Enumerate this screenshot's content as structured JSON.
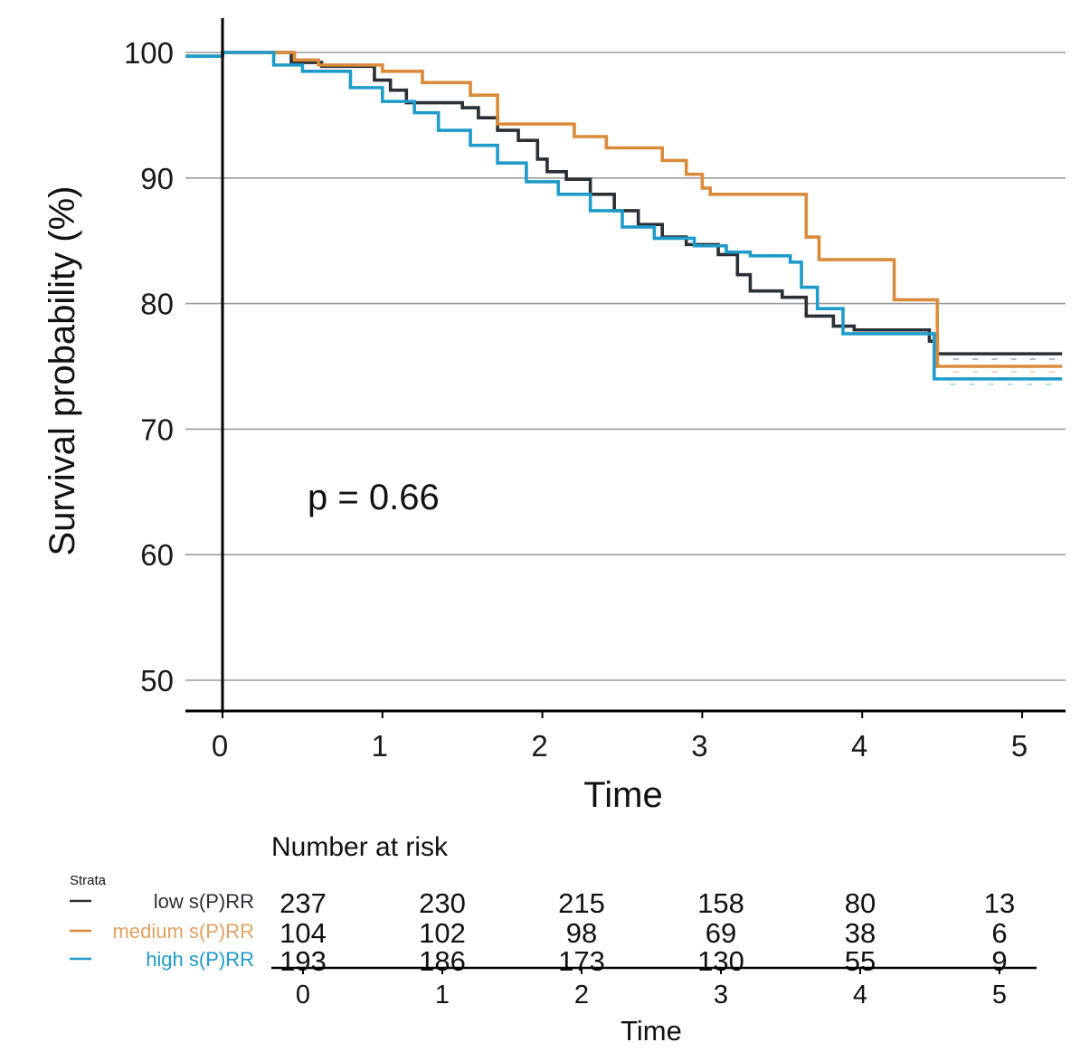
{
  "chart_data": {
    "type": "line",
    "subtype": "kaplan-meier step",
    "title": "",
    "xlabel": "Time",
    "ylabel": "Survival probability (%)",
    "xlim": [
      0,
      5.25
    ],
    "ylim": [
      47.5,
      103
    ],
    "x_ticks": [
      "0",
      "1",
      "2",
      "3",
      "4",
      "5"
    ],
    "y_ticks": [
      "50",
      "60",
      "70",
      "80",
      "90",
      "100"
    ],
    "grid": "horizontal",
    "annotation": "p = 0.66",
    "legend_title": "Strata",
    "series": [
      {
        "name": "low s(P)RR",
        "color": "#2b2f36",
        "points": [
          [
            0,
            100
          ],
          [
            0.43,
            99.2
          ],
          [
            0.62,
            98.9
          ],
          [
            0.95,
            97.8
          ],
          [
            1.05,
            97.0
          ],
          [
            1.15,
            96.0
          ],
          [
            1.5,
            95.6
          ],
          [
            1.6,
            94.8
          ],
          [
            1.72,
            93.8
          ],
          [
            1.85,
            93.0
          ],
          [
            1.97,
            91.5
          ],
          [
            2.03,
            90.5
          ],
          [
            2.15,
            89.9
          ],
          [
            2.3,
            88.7
          ],
          [
            2.45,
            87.4
          ],
          [
            2.6,
            86.3
          ],
          [
            2.75,
            85.3
          ],
          [
            2.9,
            84.7
          ],
          [
            3.1,
            83.9
          ],
          [
            3.22,
            82.3
          ],
          [
            3.3,
            81.0
          ],
          [
            3.5,
            80.5
          ],
          [
            3.65,
            79.0
          ],
          [
            3.82,
            78.2
          ],
          [
            3.95,
            77.9
          ],
          [
            4.42,
            77.0
          ],
          [
            4.47,
            76.0
          ],
          [
            5.25,
            76.0
          ]
        ]
      },
      {
        "name": "medium s(P)RR",
        "color": "#d98a3a",
        "points": [
          [
            0,
            100
          ],
          [
            0.45,
            99.4
          ],
          [
            0.6,
            99.0
          ],
          [
            1.0,
            98.5
          ],
          [
            1.25,
            97.6
          ],
          [
            1.55,
            96.6
          ],
          [
            1.72,
            94.3
          ],
          [
            2.2,
            93.3
          ],
          [
            2.4,
            92.4
          ],
          [
            2.75,
            91.4
          ],
          [
            2.9,
            90.3
          ],
          [
            3.0,
            89.2
          ],
          [
            3.05,
            88.7
          ],
          [
            3.65,
            85.3
          ],
          [
            3.73,
            83.5
          ],
          [
            4.2,
            80.3
          ],
          [
            4.47,
            75.0
          ],
          [
            5.25,
            75.0
          ]
        ]
      },
      {
        "name": "high s(P)RR",
        "color": "#1f9bc9",
        "points": [
          [
            0,
            100
          ],
          [
            0.32,
            99.0
          ],
          [
            0.5,
            98.5
          ],
          [
            0.8,
            97.2
          ],
          [
            1.0,
            96.1
          ],
          [
            1.2,
            95.2
          ],
          [
            1.35,
            93.8
          ],
          [
            1.55,
            92.6
          ],
          [
            1.72,
            91.2
          ],
          [
            1.9,
            89.7
          ],
          [
            2.1,
            88.7
          ],
          [
            2.3,
            87.4
          ],
          [
            2.5,
            86.1
          ],
          [
            2.7,
            85.2
          ],
          [
            2.95,
            84.6
          ],
          [
            3.15,
            84.1
          ],
          [
            3.3,
            83.8
          ],
          [
            3.55,
            83.3
          ],
          [
            3.62,
            81.3
          ],
          [
            3.72,
            79.6
          ],
          [
            3.88,
            77.6
          ],
          [
            4.45,
            74.0
          ],
          [
            5.25,
            74.0
          ]
        ]
      }
    ],
    "risk_table": {
      "title": "Number at risk",
      "xlabel": "Time",
      "times": [
        "0",
        "1",
        "2",
        "3",
        "4",
        "5"
      ],
      "rows": [
        {
          "name": "low s(P)RR",
          "values": [
            "237",
            "230",
            "215",
            "158",
            "80",
            "13"
          ]
        },
        {
          "name": "medium s(P)RR",
          "values": [
            "104",
            "102",
            "98",
            "69",
            "38",
            "6"
          ]
        },
        {
          "name": "high s(P)RR",
          "values": [
            "193",
            "186",
            "173",
            "130",
            "55",
            "9"
          ]
        }
      ]
    }
  }
}
